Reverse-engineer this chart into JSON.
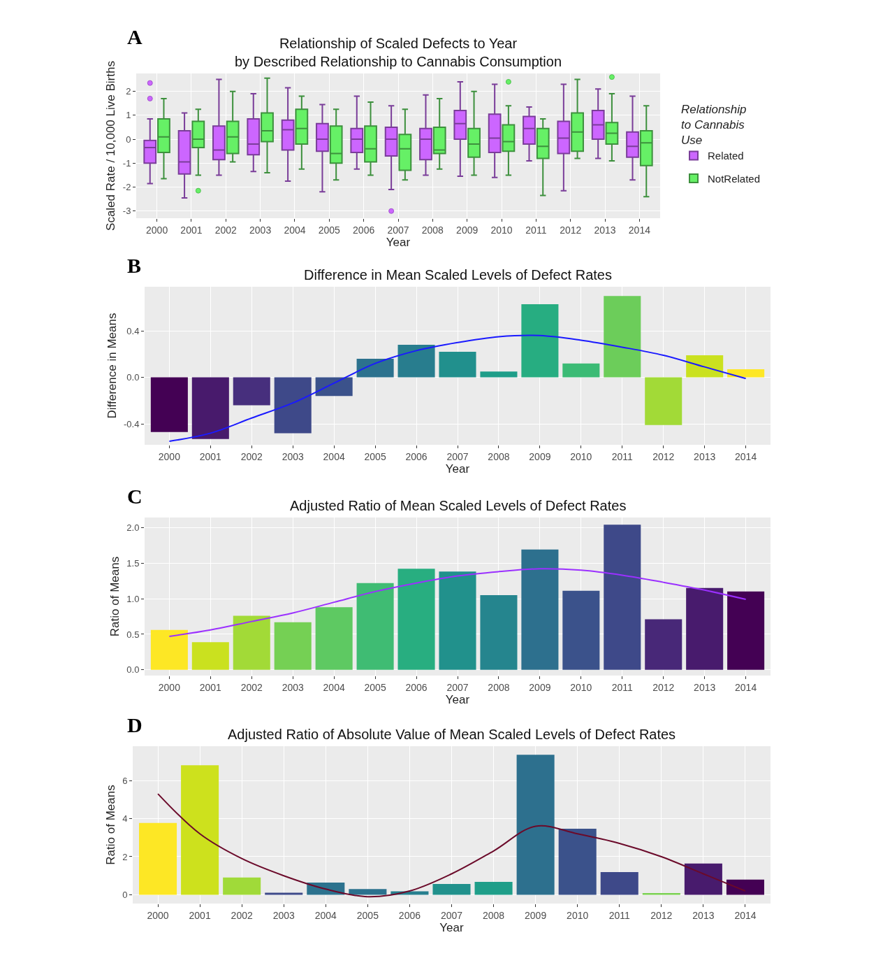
{
  "chart_data": [
    {
      "type": "box",
      "title": "Relationship of Scaled Defects to Year\nby Described Relationship to Cannabis Consumption",
      "annotations": [
        "A"
      ],
      "xlabel": "Year",
      "ylabel": "Scaled Rate / 10,000 Live Births",
      "legend_title": "Relationship to Cannabis Use",
      "legend": "right",
      "grid": true,
      "categories": [
        "2000",
        "2001",
        "2002",
        "2003",
        "2004",
        "2005",
        "2006",
        "2007",
        "2008",
        "2009",
        "2010",
        "2011",
        "2012",
        "2013",
        "2014"
      ],
      "ylim": [
        -3.3,
        2.75
      ],
      "yticks": [
        -3,
        -2,
        -1,
        0,
        1,
        2
      ],
      "series": [
        {
          "name": "Related",
          "color": "#cc66ff",
          "boxes": [
            {
              "low": -1.85,
              "q1": -1.0,
              "median": -0.35,
              "q3": -0.05,
              "high": 0.85,
              "outliers": [
                1.7,
                2.35
              ]
            },
            {
              "low": -2.45,
              "q1": -1.45,
              "median": -0.95,
              "q3": 0.35,
              "high": 1.1
            },
            {
              "low": -1.5,
              "q1": -0.85,
              "median": -0.45,
              "q3": 0.55,
              "high": 2.5
            },
            {
              "low": -1.35,
              "q1": -0.65,
              "median": -0.2,
              "q3": 0.85,
              "high": 1.9
            },
            {
              "low": -1.75,
              "q1": -0.45,
              "median": 0.4,
              "q3": 0.8,
              "high": 2.15
            },
            {
              "low": -2.2,
              "q1": -0.5,
              "median": 0.0,
              "q3": 0.65,
              "high": 1.45
            },
            {
              "low": -1.25,
              "q1": -0.55,
              "median": 0.0,
              "q3": 0.45,
              "high": 1.8
            },
            {
              "low": -2.1,
              "q1": -0.7,
              "median": 0.0,
              "q3": 0.5,
              "high": 1.4,
              "outliers": [
                -3.0
              ]
            },
            {
              "low": -1.5,
              "q1": -0.85,
              "median": 0.0,
              "q3": 0.45,
              "high": 1.85
            },
            {
              "low": -1.55,
              "q1": 0.0,
              "median": 0.65,
              "q3": 1.2,
              "high": 2.4
            },
            {
              "low": -1.6,
              "q1": -0.55,
              "median": 0.05,
              "q3": 1.05,
              "high": 2.3
            },
            {
              "low": -0.9,
              "q1": -0.2,
              "median": 0.45,
              "q3": 0.95,
              "high": 1.35
            },
            {
              "low": -2.15,
              "q1": -0.6,
              "median": 0.05,
              "q3": 0.75,
              "high": 2.3
            },
            {
              "low": -0.8,
              "q1": 0.0,
              "median": 0.6,
              "q3": 1.2,
              "high": 2.1
            },
            {
              "low": -1.7,
              "q1": -0.75,
              "median": -0.3,
              "q3": 0.3,
              "high": 1.8
            }
          ]
        },
        {
          "name": "NotRelated",
          "color": "#66f066",
          "boxes": [
            {
              "low": -1.65,
              "q1": -0.55,
              "median": 0.1,
              "q3": 0.85,
              "high": 1.7
            },
            {
              "low": -1.5,
              "q1": -0.35,
              "median": 0.0,
              "q3": 0.75,
              "high": 1.25,
              "outliers": [
                -2.15
              ]
            },
            {
              "low": -0.95,
              "q1": -0.6,
              "median": 0.1,
              "q3": 0.75,
              "high": 2.0
            },
            {
              "low": -1.4,
              "q1": -0.1,
              "median": 0.35,
              "q3": 1.1,
              "high": 2.55
            },
            {
              "low": -1.25,
              "q1": -0.2,
              "median": 0.45,
              "q3": 1.25,
              "high": 1.8
            },
            {
              "low": -1.7,
              "q1": -1.0,
              "median": -0.6,
              "q3": 0.55,
              "high": 1.25
            },
            {
              "low": -1.5,
              "q1": -0.95,
              "median": -0.4,
              "q3": 0.55,
              "high": 1.55
            },
            {
              "low": -1.7,
              "q1": -1.3,
              "median": -0.4,
              "q3": 0.2,
              "high": 1.25
            },
            {
              "low": -1.25,
              "q1": -0.6,
              "median": -0.45,
              "q3": 0.5,
              "high": 1.7
            },
            {
              "low": -1.5,
              "q1": -0.75,
              "median": -0.2,
              "q3": 0.45,
              "high": 2.0
            },
            {
              "low": -1.5,
              "q1": -0.5,
              "median": -0.1,
              "q3": 0.6,
              "high": 1.4,
              "outliers": [
                2.4
              ]
            },
            {
              "low": -2.35,
              "q1": -0.8,
              "median": -0.3,
              "q3": 0.45,
              "high": 0.85
            },
            {
              "low": -0.8,
              "q1": -0.5,
              "median": 0.3,
              "q3": 1.1,
              "high": 2.5
            },
            {
              "low": -0.9,
              "q1": -0.2,
              "median": 0.25,
              "q3": 0.7,
              "high": 1.9,
              "outliers": [
                2.6
              ]
            },
            {
              "low": -2.4,
              "q1": -1.1,
              "median": -0.15,
              "q3": 0.35,
              "high": 1.4
            }
          ]
        }
      ]
    },
    {
      "type": "bar",
      "title": "Difference in Mean Scaled Levels of Defect Rates",
      "annotations": [
        "B"
      ],
      "xlabel": "Year",
      "ylabel": "Difference in Means",
      "grid": true,
      "categories": [
        "2000",
        "2001",
        "2002",
        "2003",
        "2004",
        "2005",
        "2006",
        "2007",
        "2008",
        "2009",
        "2010",
        "2011",
        "2012",
        "2013",
        "2014"
      ],
      "ylim": [
        -0.58,
        0.78
      ],
      "yticks": [
        {
          "value": -0.4,
          "label": "-0.4"
        },
        {
          "value": 0,
          "label": "0.0"
        },
        0.4
      ],
      "series": [
        {
          "type": "bar",
          "values": [
            -0.47,
            -0.53,
            -0.24,
            -0.48,
            -0.16,
            0.16,
            0.28,
            0.22,
            0.05,
            0.63,
            0.12,
            0.7,
            -0.41,
            0.19,
            0.07
          ],
          "colors": [
            "#440154",
            "#481a6c",
            "#472f7d",
            "#3e4989",
            "#3b528b",
            "#2c728e",
            "#287d8e",
            "#21908d",
            "#1f9e89",
            "#27ad81",
            "#3bbb75",
            "#6ccd5a",
            "#a2da37",
            "#cae11f",
            "#fde725"
          ]
        },
        {
          "type": "line",
          "color": "#1a1aff",
          "values": [
            -0.55,
            -0.48,
            -0.35,
            -0.22,
            -0.05,
            0.12,
            0.23,
            0.3,
            0.35,
            0.36,
            0.32,
            0.26,
            0.19,
            0.09,
            -0.01
          ]
        }
      ]
    },
    {
      "type": "bar",
      "title": "Adjusted Ratio of Mean Scaled Levels of Defect Rates",
      "annotations": [
        "C"
      ],
      "xlabel": "Year",
      "ylabel": "Ratio of Means",
      "grid": true,
      "categories": [
        "2000",
        "2001",
        "2002",
        "2003",
        "2004",
        "2005",
        "2006",
        "2007",
        "2008",
        "2009",
        "2010",
        "2011",
        "2012",
        "2013",
        "2014"
      ],
      "ylim": [
        -0.08,
        2.14
      ],
      "yticks": [
        {
          "value": 0,
          "label": "0.0"
        },
        0.5,
        {
          "value": 1,
          "label": "1.0"
        },
        1.5,
        {
          "value": 2,
          "label": "2.0"
        }
      ],
      "series": [
        {
          "type": "bar",
          "values": [
            0.56,
            0.39,
            0.76,
            0.67,
            0.88,
            1.22,
            1.42,
            1.38,
            1.05,
            1.69,
            1.11,
            2.04,
            0.71,
            1.15,
            1.1
          ],
          "colors": [
            "#fde725",
            "#cae11f",
            "#a2da37",
            "#75d054",
            "#5ec962",
            "#3fbc73",
            "#28ae80",
            "#21918c",
            "#25858e",
            "#2d708e",
            "#3b528b",
            "#3e4989",
            "#482878",
            "#481b6d",
            "#440154"
          ]
        },
        {
          "type": "line",
          "color": "#9b30ff",
          "values": [
            0.47,
            0.56,
            0.68,
            0.8,
            0.95,
            1.1,
            1.22,
            1.32,
            1.38,
            1.42,
            1.4,
            1.33,
            1.23,
            1.12,
            0.99
          ]
        }
      ]
    },
    {
      "type": "bar",
      "title": "Adjusted Ratio of Absolute Value of Mean Scaled Levels of Defect Rates",
      "annotations": [
        "D"
      ],
      "xlabel": "Year",
      "ylabel": "Ratio of Means",
      "grid": true,
      "categories": [
        "2000",
        "2001",
        "2002",
        "2003",
        "2004",
        "2005",
        "2006",
        "2007",
        "2008",
        "2009",
        "2010",
        "2011",
        "2012",
        "2013",
        "2014"
      ],
      "ylim": [
        -0.46,
        7.8
      ],
      "yticks": [
        0,
        2,
        4,
        6
      ],
      "series": [
        {
          "type": "bar",
          "values": [
            3.77,
            6.8,
            0.91,
            0.11,
            0.64,
            0.3,
            0.18,
            0.57,
            0.68,
            7.35,
            3.47,
            1.19,
            0.09,
            1.64,
            0.8
          ],
          "colors": [
            "#fde725",
            "#cde11d",
            "#a0da39",
            "#3e4a89",
            "#2c728e",
            "#2c728e",
            "#277f8e",
            "#21918c",
            "#1f9e89",
            "#2d708e",
            "#3b528b",
            "#3e4989",
            "#7ad151",
            "#481b6d",
            "#440154"
          ]
        },
        {
          "type": "line",
          "color": "#6b0a2a",
          "values": [
            5.3,
            3.2,
            1.9,
            1.0,
            0.3,
            -0.1,
            0.2,
            1.1,
            2.3,
            3.6,
            3.2,
            2.7,
            2.0,
            1.1,
            0.2
          ]
        }
      ]
    }
  ]
}
